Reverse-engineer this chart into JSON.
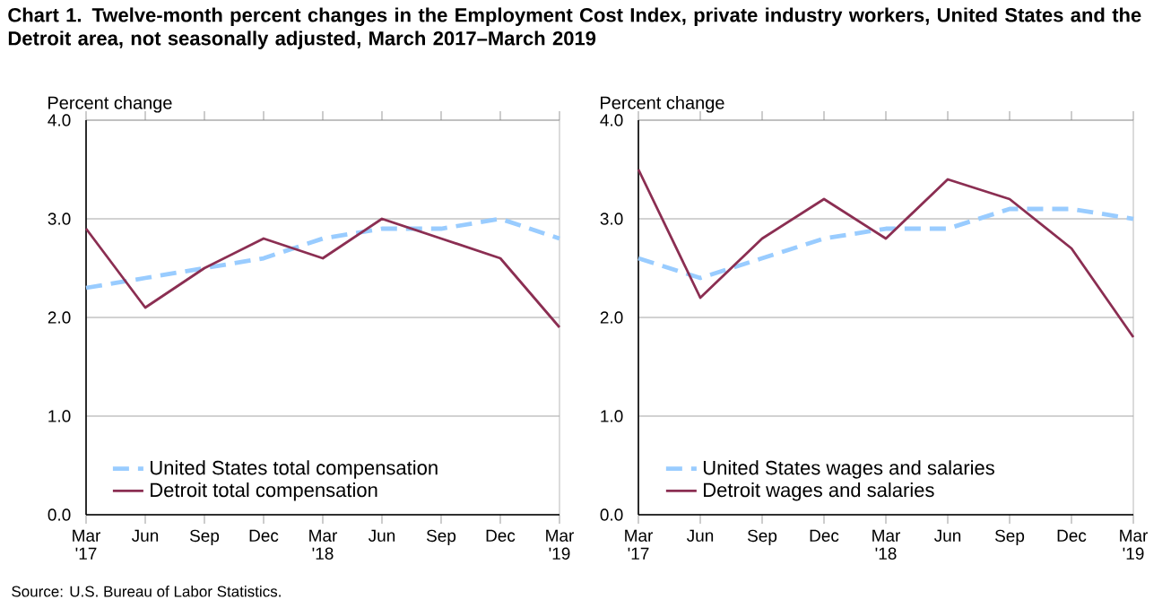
{
  "chart_data": [
    {
      "type": "line",
      "title": "Chart 1. Twelve-month percent changes in the Employment Cost Index, private industry workers, United States and the Detroit area, not seasonally adjusted, March 2017–March 2019",
      "ylabel": "Percent change",
      "categories": [
        "Mar '17",
        "Jun",
        "Sep",
        "Dec",
        "Mar '18",
        "Jun",
        "Sep",
        "Dec",
        "Mar '19"
      ],
      "series": [
        {
          "name": "United States total compensation",
          "color": "#99ccff",
          "line_style": "dashed",
          "values": [
            2.3,
            2.4,
            2.5,
            2.6,
            2.8,
            2.9,
            2.9,
            3.0,
            2.8
          ]
        },
        {
          "name": "Detroit total compensation",
          "color": "#8b2e52",
          "line_style": "solid",
          "values": [
            2.9,
            2.1,
            2.5,
            2.8,
            2.6,
            3.0,
            2.8,
            2.6,
            1.9
          ]
        }
      ],
      "ylim": [
        0,
        4
      ],
      "yticks": [
        {
          "value": 0,
          "label": "0.0"
        },
        {
          "value": 1,
          "label": "1.0"
        },
        {
          "value": 2,
          "label": "2.0"
        },
        {
          "value": 3,
          "label": "3.0"
        },
        {
          "value": 4,
          "label": "4.0"
        }
      ],
      "grid": "y",
      "legend": "bottom left",
      "annotations": [
        "Source: U.S. Bureau of Labor Statistics."
      ]
    },
    {
      "type": "line",
      "ylabel": "Percent change",
      "categories": [
        "Mar '17",
        "Jun",
        "Sep",
        "Dec",
        "Mar '18",
        "Jun",
        "Sep",
        "Dec",
        "Mar '19"
      ],
      "series": [
        {
          "name": "United States wages and salaries",
          "color": "#99ccff",
          "line_style": "dashed",
          "values": [
            2.6,
            2.4,
            2.6,
            2.8,
            2.9,
            2.9,
            3.1,
            3.1,
            3.0
          ]
        },
        {
          "name": "Detroit wages and salaries",
          "color": "#8b2e52",
          "line_style": "solid",
          "values": [
            3.5,
            2.2,
            2.8,
            3.2,
            2.8,
            3.4,
            3.2,
            2.7,
            1.8
          ]
        }
      ],
      "ylim": [
        0,
        4
      ],
      "yticks": [
        {
          "value": 0,
          "label": "0.0"
        },
        {
          "value": 1,
          "label": "1.0"
        },
        {
          "value": 2,
          "label": "2.0"
        },
        {
          "value": 3,
          "label": "3.0"
        },
        {
          "value": 4,
          "label": "4.0"
        }
      ],
      "grid": "y",
      "legend": "bottom left"
    }
  ]
}
